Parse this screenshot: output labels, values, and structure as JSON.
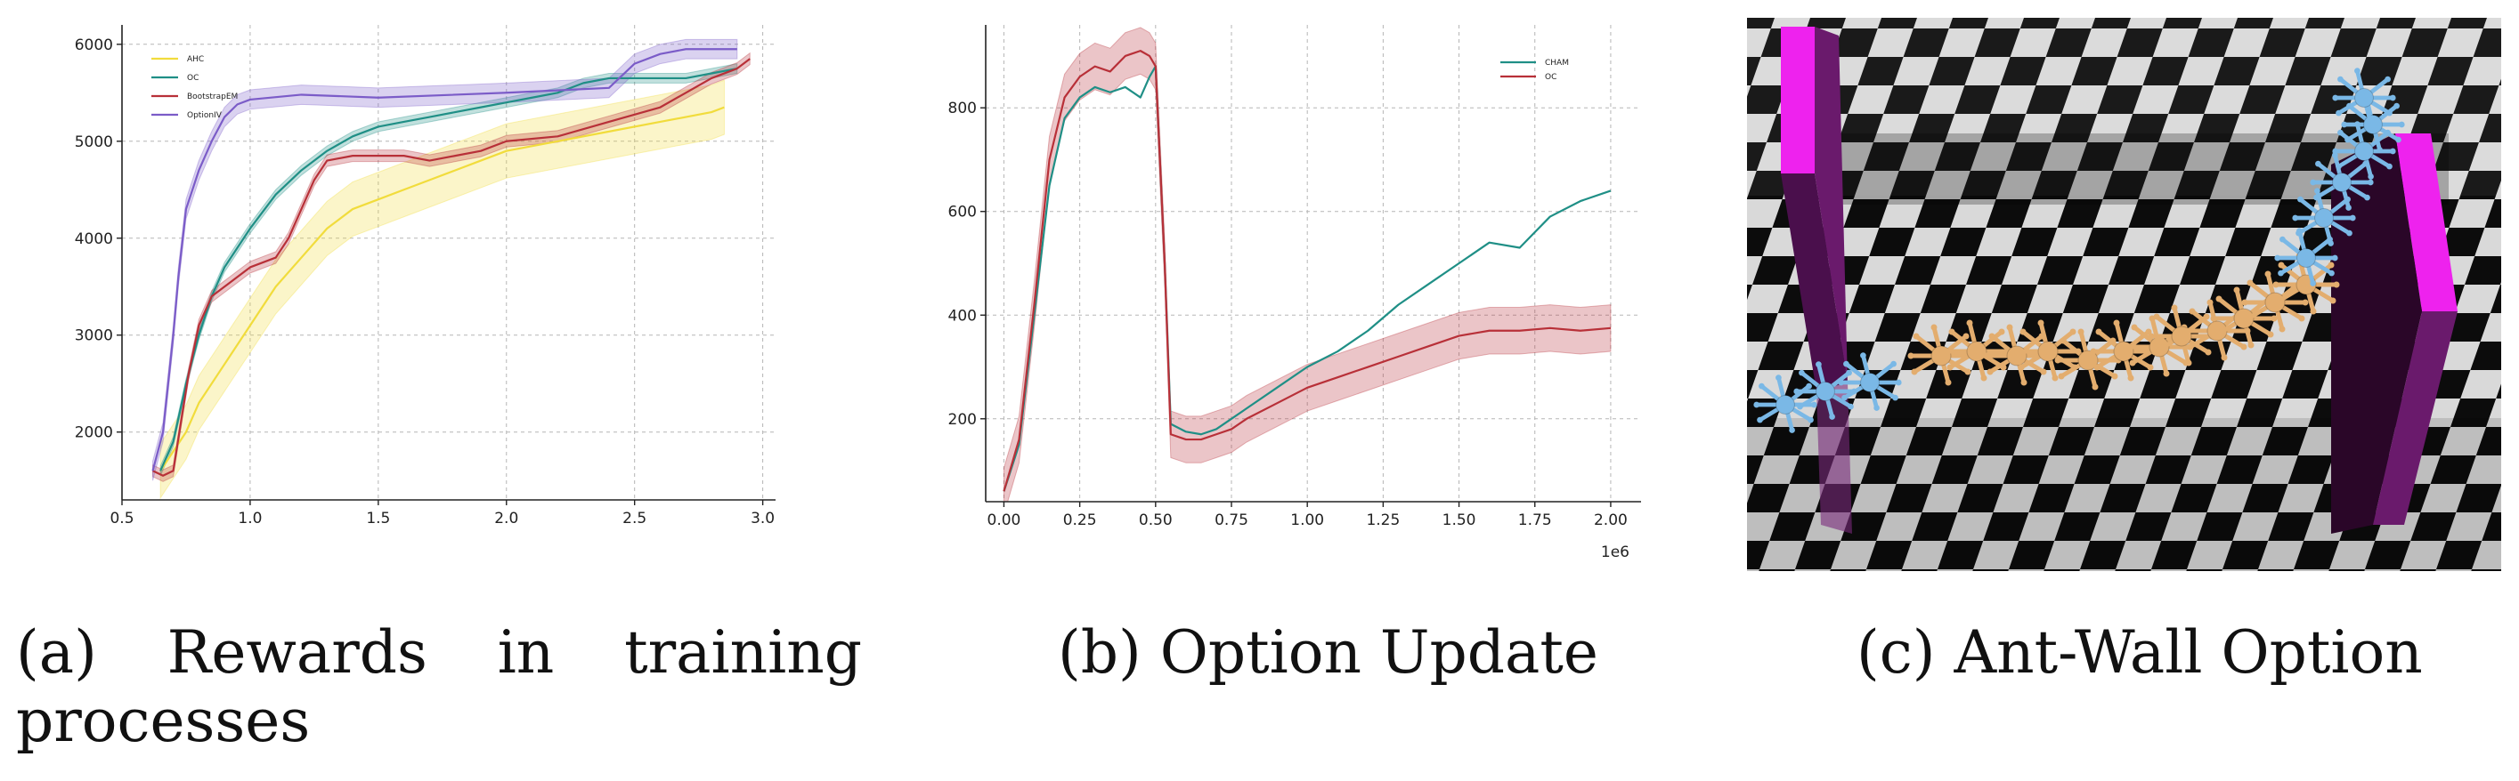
{
  "colors": {
    "AHC": "#f1dc3c",
    "OC_a": "#1f8f86",
    "BootstrapEM": "#b83038",
    "OptionIV": "#7b5cc8",
    "CHAM": "#1f8f86",
    "OC_b": "#b83038",
    "wall": "#ee22ee",
    "ant_blue": "#7ab8e6",
    "ant_orange": "#e3ad6e"
  },
  "captions": {
    "a_words": [
      "(a)",
      "Rewards",
      "in",
      "training"
    ],
    "a_line2": "processes",
    "b": "(b) Option Update",
    "c": "(c) Ant-Wall Option"
  },
  "chart_data": [
    {
      "id": "a",
      "type": "line",
      "title": "",
      "xlabel": "",
      "ylabel": "",
      "xlim": [
        0.5,
        3.05
      ],
      "ylim": [
        1300,
        6200
      ],
      "xticks": [
        0.5,
        1.0,
        1.5,
        2.0,
        2.5,
        3.0
      ],
      "xtick_labels": [
        "0.5",
        "1.0",
        "1.5",
        "2.0",
        "2.5",
        "3.0"
      ],
      "yticks": [
        2000,
        3000,
        4000,
        5000,
        6000
      ],
      "ytick_labels": [
        "2000",
        "3000",
        "4000",
        "5000",
        "6000"
      ],
      "grid": true,
      "legend": "top-left",
      "series": [
        {
          "name": "AHC",
          "color_key": "AHC",
          "band": 280,
          "x": [
            0.65,
            0.7,
            0.75,
            0.8,
            0.9,
            1.0,
            1.1,
            1.2,
            1.3,
            1.4,
            1.5,
            1.6,
            1.7,
            1.8,
            1.9,
            2.0,
            2.2,
            2.4,
            2.6,
            2.8,
            2.85
          ],
          "y": [
            1600,
            1800,
            2000,
            2300,
            2700,
            3100,
            3500,
            3800,
            4100,
            4300,
            4400,
            4500,
            4600,
            4700,
            4800,
            4900,
            5000,
            5100,
            5200,
            5300,
            5350
          ]
        },
        {
          "name": "OC",
          "color_key": "OC_a",
          "band": 50,
          "x": [
            0.65,
            0.7,
            0.75,
            0.8,
            0.85,
            0.9,
            1.0,
            1.1,
            1.2,
            1.3,
            1.4,
            1.5,
            1.6,
            1.7,
            1.8,
            1.9,
            2.0,
            2.1,
            2.2,
            2.3,
            2.4,
            2.5,
            2.6,
            2.7,
            2.8,
            2.9
          ],
          "y": [
            1600,
            1900,
            2500,
            3000,
            3400,
            3700,
            4100,
            4450,
            4700,
            4900,
            5050,
            5150,
            5200,
            5250,
            5300,
            5350,
            5400,
            5450,
            5500,
            5600,
            5650,
            5650,
            5650,
            5650,
            5700,
            5750
          ]
        },
        {
          "name": "BootstrapEM",
          "color_key": "BootstrapEM",
          "band": 60,
          "x": [
            0.62,
            0.66,
            0.7,
            0.73,
            0.76,
            0.8,
            0.85,
            0.9,
            1.0,
            1.1,
            1.15,
            1.2,
            1.25,
            1.3,
            1.4,
            1.6,
            1.7,
            1.8,
            1.9,
            2.0,
            2.2,
            2.4,
            2.6,
            2.7,
            2.8,
            2.9,
            2.95
          ],
          "y": [
            1600,
            1550,
            1600,
            2100,
            2600,
            3100,
            3400,
            3500,
            3700,
            3800,
            4000,
            4300,
            4600,
            4800,
            4850,
            4850,
            4800,
            4850,
            4900,
            5000,
            5050,
            5200,
            5350,
            5500,
            5650,
            5750,
            5850
          ]
        },
        {
          "name": "OptionIV",
          "color_key": "OptionIV",
          "band": 100,
          "x": [
            0.62,
            0.66,
            0.7,
            0.72,
            0.75,
            0.8,
            0.85,
            0.9,
            0.95,
            1.0,
            1.2,
            1.5,
            2.0,
            2.4,
            2.5,
            2.6,
            2.7,
            2.8,
            2.9
          ],
          "y": [
            1600,
            2000,
            3000,
            3600,
            4300,
            4700,
            5000,
            5250,
            5380,
            5430,
            5480,
            5450,
            5500,
            5550,
            5800,
            5900,
            5950,
            5950,
            5950
          ]
        }
      ]
    },
    {
      "id": "b",
      "type": "line",
      "title": "",
      "xlabel": "",
      "ylabel": "",
      "x_offset_label": "1e6",
      "xlim": [
        -0.06,
        2.1
      ],
      "ylim": [
        40,
        960
      ],
      "xticks": [
        0.0,
        0.25,
        0.5,
        0.75,
        1.0,
        1.25,
        1.5,
        1.75,
        2.0
      ],
      "xtick_labels": [
        "0.00",
        "0.25",
        "0.50",
        "0.75",
        "1.00",
        "1.25",
        "1.50",
        "1.75",
        "2.00"
      ],
      "yticks": [
        200,
        400,
        600,
        800
      ],
      "ytick_labels": [
        "200",
        "400",
        "600",
        "800"
      ],
      "grid": true,
      "legend": "top-right",
      "series": [
        {
          "name": "CHAM",
          "color_key": "CHAM",
          "band": 0,
          "x": [
            0.0,
            0.05,
            0.1,
            0.15,
            0.2,
            0.25,
            0.3,
            0.35,
            0.4,
            0.45,
            0.48,
            0.5,
            0.53,
            0.55,
            0.6,
            0.65,
            0.7,
            0.75,
            0.8,
            0.9,
            1.0,
            1.1,
            1.2,
            1.3,
            1.4,
            1.5,
            1.6,
            1.7,
            1.75,
            1.8,
            1.9,
            2.0
          ],
          "y": [
            60,
            150,
            400,
            650,
            780,
            820,
            840,
            830,
            840,
            820,
            860,
            880,
            500,
            190,
            175,
            170,
            180,
            200,
            220,
            260,
            300,
            330,
            370,
            420,
            460,
            500,
            540,
            530,
            560,
            590,
            620,
            640
          ]
        },
        {
          "name": "OC",
          "color_key": "OC_b",
          "band": 45,
          "x": [
            0.0,
            0.05,
            0.1,
            0.15,
            0.2,
            0.25,
            0.3,
            0.35,
            0.4,
            0.45,
            0.48,
            0.5,
            0.53,
            0.55,
            0.6,
            0.65,
            0.7,
            0.75,
            0.8,
            0.9,
            1.0,
            1.1,
            1.2,
            1.3,
            1.4,
            1.5,
            1.6,
            1.7,
            1.8,
            1.9,
            2.0
          ],
          "y": [
            60,
            160,
            420,
            700,
            820,
            860,
            880,
            870,
            900,
            910,
            900,
            880,
            500,
            170,
            160,
            160,
            170,
            180,
            200,
            230,
            260,
            280,
            300,
            320,
            340,
            360,
            370,
            370,
            375,
            370,
            375
          ]
        }
      ]
    }
  ]
}
